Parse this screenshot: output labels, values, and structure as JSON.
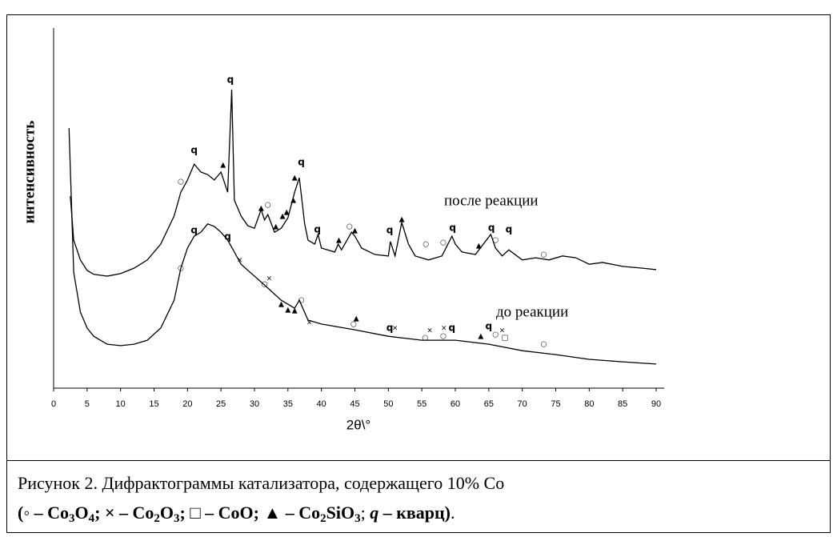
{
  "chart_data": {
    "type": "line",
    "xlabel": "2θ\\°",
    "ylabel": "интенсивность",
    "xlim": [
      0,
      90
    ],
    "xticks": [
      0,
      5,
      10,
      15,
      20,
      25,
      30,
      35,
      40,
      45,
      50,
      55,
      60,
      65,
      70,
      75,
      80,
      85,
      90
    ],
    "ylim": [
      0,
      100
    ],
    "series": [
      {
        "name": "после реакции",
        "color": "#000000",
        "x": [
          2.5,
          3,
          4,
          5,
          6,
          8,
          10,
          12,
          14,
          16,
          18,
          19,
          20,
          21,
          22,
          23,
          24,
          25,
          26,
          26.6,
          27,
          28,
          29,
          30,
          31,
          31.5,
          32,
          33,
          34,
          35,
          36,
          36.7,
          37.5,
          38,
          39,
          39.5,
          40,
          42,
          42.5,
          43,
          44.5,
          45,
          46,
          48,
          50,
          50.3,
          51,
          52,
          53,
          54,
          56,
          58,
          59.5,
          60,
          61,
          63,
          65.3,
          66,
          67,
          68,
          70,
          72,
          74,
          76,
          78,
          80,
          82,
          85,
          88,
          90
        ],
        "values": [
          53.3,
          41.1,
          35.6,
          32.7,
          31.6,
          31.1,
          31.8,
          33.3,
          35.6,
          40,
          47.8,
          54.4,
          57.8,
          62.2,
          60,
          59.3,
          57.8,
          60,
          54.4,
          82.9,
          52.2,
          47.8,
          45.1,
          44.4,
          49.6,
          46.7,
          48.2,
          43.3,
          44.4,
          47.3,
          54.4,
          58.4,
          45.6,
          41.1,
          40,
          42.7,
          38.9,
          37.8,
          40,
          38.4,
          43.3,
          42.2,
          38.9,
          37.1,
          36.7,
          40.7,
          36.7,
          46,
          40,
          36.7,
          35.6,
          36.7,
          42.2,
          40,
          37.8,
          37.1,
          42.7,
          38.9,
          36.7,
          38.4,
          35.6,
          36.2,
          35.6,
          36.7,
          36.2,
          34.4,
          34.9,
          33.8,
          33.3,
          32.9
        ]
      },
      {
        "name": "до реакции",
        "color": "#000000",
        "x": [
          2.3,
          3,
          4,
          5,
          6,
          8,
          10,
          12,
          14,
          16,
          18,
          19,
          20,
          21,
          22,
          23,
          24,
          25,
          26,
          27,
          28,
          30,
          32,
          34,
          36,
          36.7,
          38,
          40,
          45,
          50,
          55,
          60,
          65,
          70,
          75,
          80,
          85,
          90
        ],
        "values": [
          72.2,
          32.2,
          21.1,
          16.7,
          14.4,
          12.2,
          11.8,
          12.2,
          13.3,
          16.7,
          24.4,
          33.3,
          38.9,
          42.2,
          43.3,
          45.6,
          44.9,
          43.3,
          41.1,
          37.8,
          34.4,
          31.1,
          27.8,
          24.4,
          22.2,
          24.4,
          18.9,
          17.8,
          16.2,
          14.4,
          13.3,
          13.3,
          12.2,
          10.4,
          9.3,
          8,
          7.3,
          6.7
        ]
      }
    ],
    "annotations": [
      {
        "text": "○",
        "x": 19,
        "y": 57.3
      },
      {
        "text": "q",
        "x": 21,
        "y": 66
      },
      {
        "text": "▲",
        "x": 25.3,
        "y": 62
      },
      {
        "text": "q",
        "x": 26.4,
        "y": 85.6
      },
      {
        "text": "▲",
        "x": 31,
        "y": 50
      },
      {
        "text": "○",
        "x": 32,
        "y": 50.9
      },
      {
        "text": "▲",
        "x": 33.2,
        "y": 44.9
      },
      {
        "text": "▲",
        "x": 34.2,
        "y": 47.8
      },
      {
        "text": "▲",
        "x": 34.8,
        "y": 48.9
      },
      {
        "text": "▲",
        "x": 35.8,
        "y": 52.2
      },
      {
        "text": "▲",
        "x": 36,
        "y": 58.4
      },
      {
        "text": "q",
        "x": 37,
        "y": 62.7
      },
      {
        "text": "q",
        "x": 39.4,
        "y": 44
      },
      {
        "text": "▲",
        "x": 42.6,
        "y": 41.1
      },
      {
        "text": "○",
        "x": 44.2,
        "y": 44.9
      },
      {
        "text": "▲",
        "x": 45,
        "y": 43.8
      },
      {
        "text": "q",
        "x": 50.2,
        "y": 43.8
      },
      {
        "text": "▲",
        "x": 52,
        "y": 46.9
      },
      {
        "text": "○",
        "x": 55.6,
        "y": 40
      },
      {
        "text": "○",
        "x": 58.2,
        "y": 40.4
      },
      {
        "text": "q",
        "x": 59.6,
        "y": 44.4
      },
      {
        "text": "▲",
        "x": 63.5,
        "y": 39.6
      },
      {
        "text": "q",
        "x": 65.4,
        "y": 44.4
      },
      {
        "text": "○",
        "x": 66,
        "y": 41.1
      },
      {
        "text": "q",
        "x": 68,
        "y": 44
      },
      {
        "text": "○",
        "x": 73.2,
        "y": 37.1
      },
      {
        "text": "○",
        "x": 19,
        "y": 33.3
      },
      {
        "text": "q",
        "x": 21,
        "y": 43.8
      },
      {
        "text": "q",
        "x": 26,
        "y": 42
      },
      {
        "text": "×",
        "x": 27.8,
        "y": 35.6
      },
      {
        "text": "○",
        "x": 31.5,
        "y": 28.9
      },
      {
        "text": "×",
        "x": 32.2,
        "y": 30.4
      },
      {
        "text": "▲",
        "x": 34,
        "y": 23.3
      },
      {
        "text": "▲",
        "x": 35,
        "y": 21.8
      },
      {
        "text": "▲",
        "x": 36,
        "y": 21.6
      },
      {
        "text": "○",
        "x": 37,
        "y": 24.4
      },
      {
        "text": "×",
        "x": 38.2,
        "y": 18.2
      },
      {
        "text": "▲",
        "x": 45.2,
        "y": 19.3
      },
      {
        "text": "○",
        "x": 44.8,
        "y": 17.8
      },
      {
        "text": "q",
        "x": 50.2,
        "y": 16.7
      },
      {
        "text": "×",
        "x": 51,
        "y": 16.7
      },
      {
        "text": "○",
        "x": 55.5,
        "y": 14
      },
      {
        "text": "×",
        "x": 56.2,
        "y": 16
      },
      {
        "text": "×",
        "x": 58.3,
        "y": 16.7
      },
      {
        "text": "○",
        "x": 58.2,
        "y": 14.4
      },
      {
        "text": "q",
        "x": 59.5,
        "y": 16.7
      },
      {
        "text": "▲",
        "x": 63.8,
        "y": 14.4
      },
      {
        "text": "q",
        "x": 65,
        "y": 17.1
      },
      {
        "text": "○",
        "x": 66,
        "y": 14.9
      },
      {
        "text": "×",
        "x": 67,
        "y": 16
      },
      {
        "text": "□",
        "x": 67.4,
        "y": 14
      },
      {
        "text": "○",
        "x": 73.2,
        "y": 12.2
      }
    ]
  },
  "caption": {
    "line1": "Рисунок 2. Дифрактограммы катализатора, содержащего 10% Co",
    "line2": [
      {
        "t": "(◦ – Co",
        "b": true
      },
      {
        "t": "3",
        "b": true,
        "sub": true
      },
      {
        "t": "O",
        "b": true
      },
      {
        "t": "4",
        "b": true,
        "sub": true
      },
      {
        "t": "; × – Co",
        "b": true
      },
      {
        "t": "2",
        "b": true,
        "sub": true
      },
      {
        "t": "O",
        "b": true
      },
      {
        "t": "3",
        "b": true,
        "sub": true
      },
      {
        "t": "; □ – CoO; ▲ – Co",
        "b": true
      },
      {
        "t": "2",
        "b": true,
        "sub": true
      },
      {
        "t": "SiO",
        "b": true
      },
      {
        "t": "3",
        "b": true,
        "sub": true
      },
      {
        "t": "; ",
        "b": false
      },
      {
        "t": "q",
        "b": true,
        "i": true
      },
      {
        "t": " – кварц)",
        "b": true
      },
      {
        "t": ".",
        "b": false
      }
    ]
  }
}
